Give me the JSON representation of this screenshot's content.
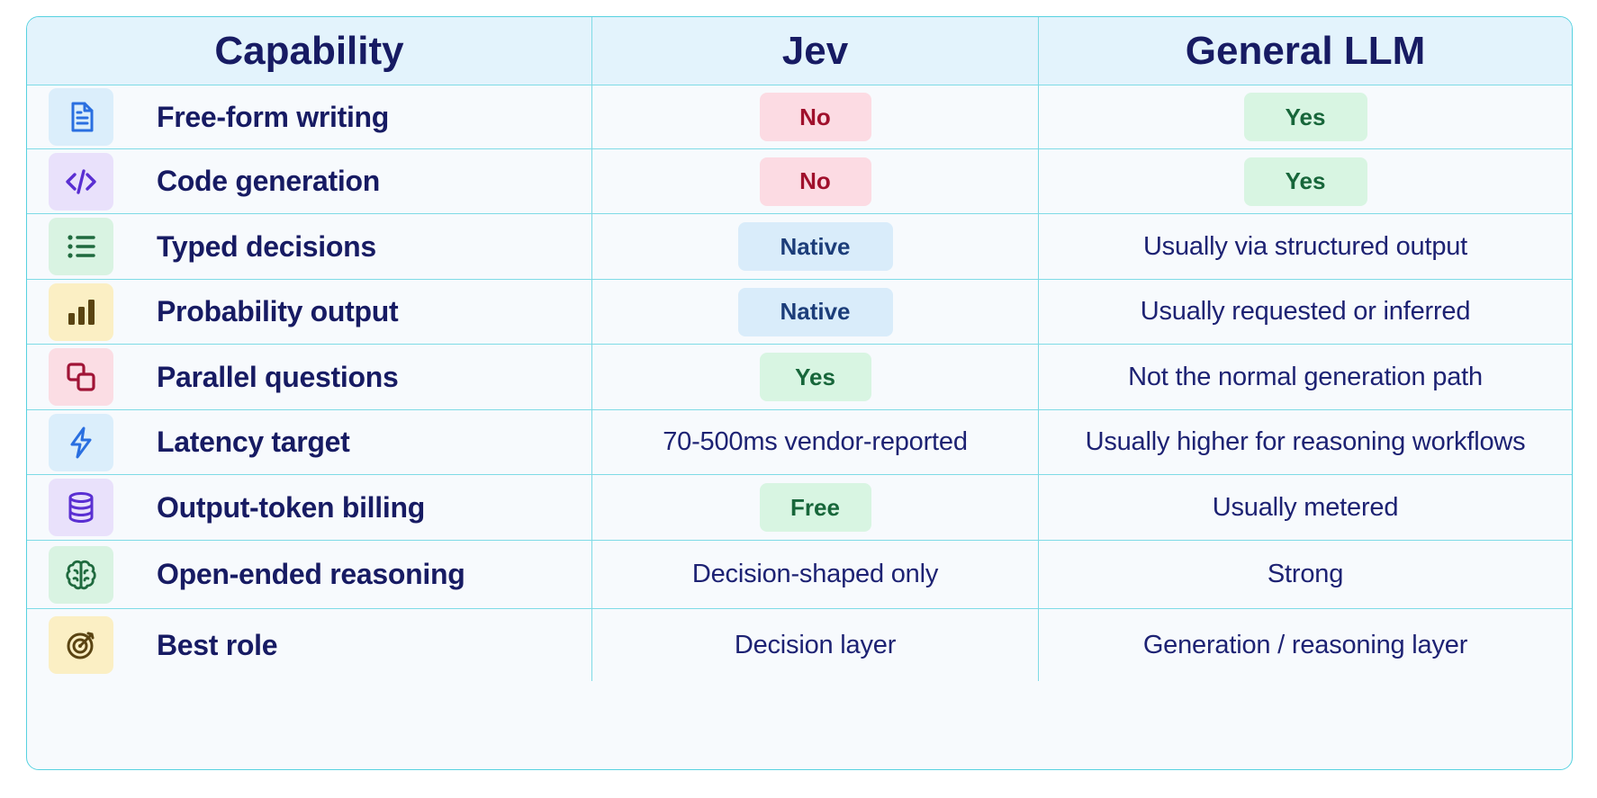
{
  "header": {
    "capability": "Capability",
    "jev": "Jev",
    "general_llm": "General LLM"
  },
  "rows": [
    {
      "icon": "document-icon",
      "capability": "Free-form writing",
      "jev": "No",
      "general_llm": "Yes"
    },
    {
      "icon": "code-icon",
      "capability": "Code generation",
      "jev": "No",
      "general_llm": "Yes"
    },
    {
      "icon": "list-icon",
      "capability": "Typed decisions",
      "jev": "Native",
      "general_llm": "Usually via structured output"
    },
    {
      "icon": "bar-chart-icon",
      "capability": "Probability output",
      "jev": "Native",
      "general_llm": "Usually requested or inferred"
    },
    {
      "icon": "overlapping-squares-icon",
      "capability": "Parallel questions",
      "jev": "Yes",
      "general_llm": "Not the normal generation path"
    },
    {
      "icon": "lightning-icon",
      "capability": "Latency target",
      "jev": "70-500ms vendor-reported",
      "general_llm": "Usually higher for reasoning workflows"
    },
    {
      "icon": "database-icon",
      "capability": "Output-token billing",
      "jev": "Free",
      "general_llm": "Usually metered"
    },
    {
      "icon": "brain-icon",
      "capability": "Open-ended reasoning",
      "jev": "Decision-shaped only",
      "general_llm": "Strong"
    },
    {
      "icon": "target-icon",
      "capability": "Best role",
      "jev": "Decision layer",
      "general_llm": "Generation / reasoning layer"
    }
  ],
  "colors": {
    "border": "#57d2e0",
    "header_bg": "#e3f3fc",
    "no_pill_bg": "#fcdbe3",
    "no_pill_text": "#a0102c",
    "yes_pill_bg": "#d8f5e2",
    "yes_pill_text": "#17663a",
    "native_pill_bg": "#d9ecfa",
    "native_pill_text": "#1c3d79"
  }
}
